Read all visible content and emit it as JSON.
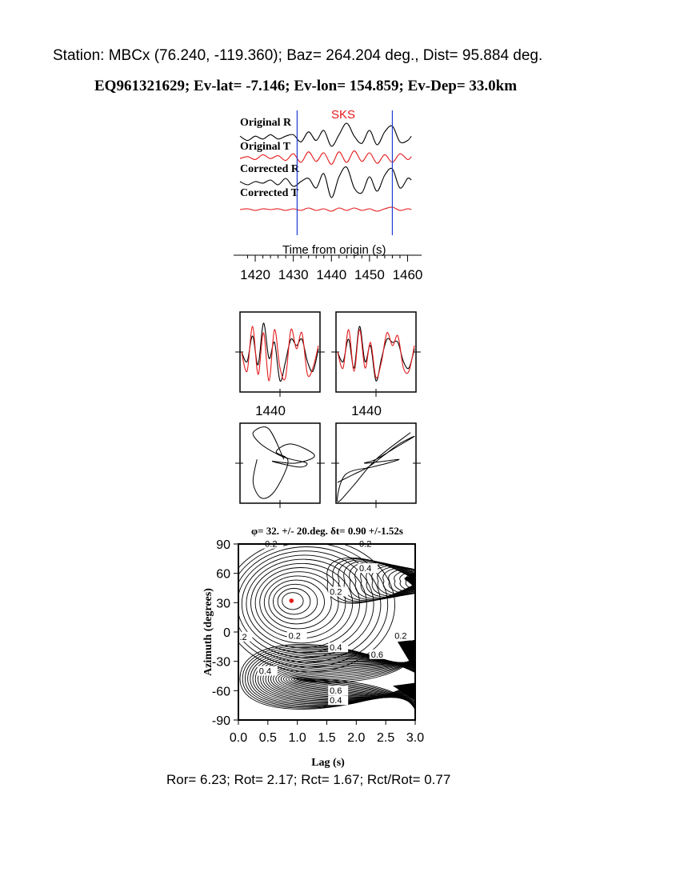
{
  "header": {
    "station_line": "Station: MBCx (76.240, -119.360); Baz=  264.204 deg., Dist=   95.884 deg.",
    "event_line": "EQ961321629; Ev-lat=  -7.146; Ev-lon= 154.859; Ev-Dep= 33.0km"
  },
  "colors": {
    "trace_black": "#000000",
    "trace_red": "#e41a1c",
    "marker_blue": "#1f3fd6",
    "phase_red": "#e41a1c"
  },
  "chart_data": [
    {
      "type": "line",
      "panel": "seismograms",
      "phase_label": "SKS",
      "xlabel": "Time from origin (s)",
      "xticks": [
        1420,
        1430,
        1440,
        1450,
        1460
      ],
      "xlim": [
        1416,
        1462
      ],
      "window_markers": [
        1431,
        1456
      ],
      "series": [
        {
          "name": "Original R",
          "color": "black",
          "x": [
            1416,
            1418,
            1420,
            1422,
            1424,
            1426,
            1428,
            1430,
            1432,
            1434,
            1436,
            1438,
            1440,
            1442,
            1444,
            1446,
            1448,
            1450,
            1452,
            1454,
            1456,
            1458,
            1460,
            1461
          ],
          "values": [
            0.1,
            -0.2,
            0.1,
            -0.1,
            0.2,
            -0.1,
            0.1,
            0.2,
            -0.3,
            0.4,
            -0.2,
            0.5,
            -0.6,
            0.2,
            1.0,
            0.1,
            -0.4,
            0.5,
            -0.5,
            0.4,
            0.8,
            -0.3,
            -0.2,
            0.1
          ]
        },
        {
          "name": "Original T",
          "color": "red",
          "x": [
            1416,
            1418,
            1420,
            1422,
            1424,
            1426,
            1428,
            1430,
            1432,
            1434,
            1436,
            1438,
            1440,
            1442,
            1444,
            1446,
            1448,
            1450,
            1452,
            1454,
            1456,
            1458,
            1460,
            1461
          ],
          "values": [
            -0.1,
            0.1,
            -0.2,
            0.3,
            -0.1,
            0.2,
            -0.3,
            0.4,
            -0.5,
            0.6,
            -0.4,
            0.5,
            -0.7,
            0.6,
            -0.5,
            0.7,
            -0.4,
            0.5,
            -0.6,
            0.3,
            -0.5,
            0.4,
            -0.2,
            0.1
          ]
        },
        {
          "name": "Corrected R",
          "color": "black",
          "x": [
            1416,
            1418,
            1420,
            1422,
            1424,
            1426,
            1428,
            1430,
            1432,
            1434,
            1436,
            1438,
            1440,
            1442,
            1444,
            1446,
            1448,
            1450,
            1452,
            1454,
            1456,
            1458,
            1460,
            1461
          ],
          "values": [
            0.1,
            -0.1,
            0.1,
            0.0,
            0.2,
            -0.1,
            0.3,
            -0.2,
            0.1,
            0.3,
            -0.3,
            0.6,
            -0.9,
            0.4,
            1.0,
            -0.3,
            -0.6,
            0.4,
            -0.5,
            0.5,
            0.9,
            -0.3,
            0.3,
            0.2
          ]
        },
        {
          "name": "Corrected T",
          "color": "red",
          "x": [
            1416,
            1418,
            1420,
            1422,
            1424,
            1426,
            1428,
            1430,
            1432,
            1434,
            1436,
            1438,
            1440,
            1442,
            1444,
            1446,
            1448,
            1450,
            1452,
            1454,
            1456,
            1458,
            1460,
            1461
          ],
          "values": [
            0.0,
            0.1,
            -0.1,
            0.1,
            0.0,
            0.1,
            -0.1,
            0.1,
            -0.1,
            0.2,
            -0.1,
            0.1,
            -0.2,
            0.2,
            -0.1,
            0.2,
            -0.1,
            0.1,
            -0.2,
            0.1,
            0.3,
            -0.1,
            0.1,
            0.0
          ]
        }
      ]
    },
    {
      "type": "line",
      "panel": "waveform-comparison",
      "xticks": [
        1440
      ],
      "panels": [
        {
          "series": [
            {
              "color": "black",
              "values": [
                0.0,
                -0.3,
                0.5,
                -0.4,
                0.9,
                -0.2,
                0.3,
                -0.9,
                -0.3,
                0.4,
                0.2,
                0.4,
                -0.3,
                -0.6,
                0.1
              ]
            },
            {
              "color": "red",
              "values": [
                0.0,
                -0.6,
                0.8,
                -0.7,
                0.6,
                -0.9,
                0.7,
                -0.5,
                -0.8,
                0.7,
                0.1,
                0.6,
                -0.7,
                -0.5,
                0.2
              ]
            }
          ]
        },
        {
          "series": [
            {
              "color": "black",
              "values": [
                0.0,
                -0.3,
                0.4,
                -0.5,
                0.8,
                -0.3,
                0.2,
                -0.9,
                -0.2,
                0.4,
                0.3,
                0.3,
                -0.3,
                -0.5,
                0.1
              ]
            },
            {
              "color": "red",
              "values": [
                0.0,
                -0.5,
                0.7,
                -0.6,
                0.7,
                -0.5,
                0.3,
                -0.8,
                -0.3,
                0.6,
                0.2,
                0.5,
                -0.5,
                -0.6,
                0.2
              ]
            }
          ]
        }
      ]
    },
    {
      "type": "line",
      "panel": "particle-motion",
      "panels": [
        {
          "x": [
            -0.6,
            -0.7,
            -0.5,
            -0.2,
            0.1,
            0.2,
            -0.1,
            0.3,
            0.9,
            0.4,
            -0.2,
            0.5,
            0.7,
            0.3,
            0.0,
            -0.5,
            -0.7,
            -0.3,
            0.1
          ],
          "y": [
            0.1,
            -0.5,
            -0.9,
            -0.8,
            -0.3,
            0.1,
            0.3,
            0.5,
            0.2,
            0.0,
            0.05,
            -0.1,
            0.0,
            0.1,
            0.2,
            0.5,
            0.8,
            0.9,
            0.1
          ]
        },
        {
          "x": [
            -1.0,
            -0.6,
            -0.2,
            0.2,
            0.6,
            1.0,
            0.5,
            0.0,
            -0.3,
            0.2,
            0.6,
            0.3,
            -0.1,
            -0.8,
            -1.0,
            -0.6,
            0.0,
            0.9
          ],
          "y": [
            -0.5,
            -0.3,
            -0.1,
            0.2,
            0.5,
            0.7,
            0.4,
            0.1,
            0.0,
            0.05,
            0.1,
            0.0,
            -0.1,
            -0.3,
            -1.0,
            -0.6,
            0.1,
            0.8
          ]
        }
      ]
    },
    {
      "type": "heatmap",
      "panel": "energy-contours",
      "title_text": "φ= 32. +/- 20.deg. δt= 0.90 +/-1.52s",
      "xlabel": "Lag (s)",
      "ylabel": "Azimuth (degrees)",
      "xticks": [
        0.0,
        0.5,
        1.0,
        1.5,
        2.0,
        2.5,
        3.0
      ],
      "yticks": [
        90,
        60,
        30,
        0,
        -30,
        -60,
        -90
      ],
      "xlim": [
        0.0,
        3.0
      ],
      "ylim": [
        -90,
        90
      ],
      "best": {
        "x": 0.9,
        "y": 32
      },
      "contour_labels": [
        {
          "text": "0.2",
          "x": 0.45,
          "y": 87
        },
        {
          "text": "0.2",
          "x": 2.05,
          "y": 87
        },
        {
          "text": "0.4",
          "x": 2.05,
          "y": 62
        },
        {
          "text": "0.2",
          "x": 1.55,
          "y": 38
        },
        {
          "text": ".2",
          "x": 0.02,
          "y": -8
        },
        {
          "text": "0.2",
          "x": 0.85,
          "y": -7
        },
        {
          "text": "0.2",
          "x": 2.65,
          "y": -7
        },
        {
          "text": "0.4",
          "x": 1.55,
          "y": -19
        },
        {
          "text": "0.6",
          "x": 2.25,
          "y": -26
        },
        {
          "text": "0.4",
          "x": 0.35,
          "y": -43
        },
        {
          "text": "0.6",
          "x": 1.55,
          "y": -63
        },
        {
          "text": "0.4",
          "x": 1.55,
          "y": -73
        }
      ]
    }
  ],
  "footer": {
    "stats_line": "Ror= 6.23; Rot= 2.17; Rct= 1.67; Rct/Rot= 0.77"
  }
}
